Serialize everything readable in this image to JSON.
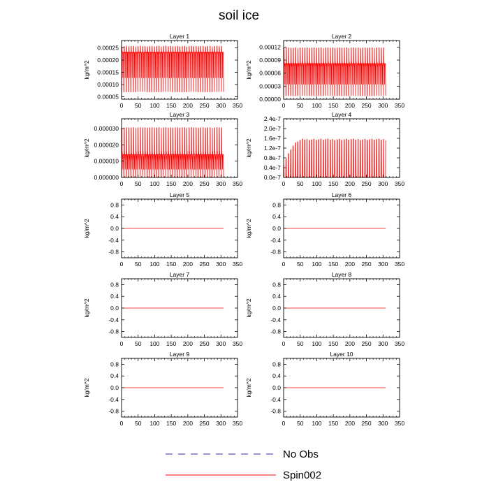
{
  "figure": {
    "title": "soil ice",
    "legend": [
      {
        "label": "No Obs",
        "color": "#2b2bb0",
        "style": "dashed"
      },
      {
        "label": "Spin002",
        "color": "#ff0000",
        "style": "solid"
      }
    ]
  },
  "chart_data": [
    {
      "type": "line",
      "title": "Layer 1",
      "ylabel": "kg/m^2",
      "xlim": [
        0,
        350
      ],
      "ylim": [
        4e-05,
        0.00028
      ],
      "xticks": [
        0,
        50,
        100,
        150,
        200,
        250,
        300,
        350
      ],
      "yticks": [
        5e-05,
        0.0001,
        0.00015,
        0.0002,
        0.00025
      ],
      "ytick_labels": [
        "0.00005",
        "0.00010",
        "0.00015",
        "0.00020",
        "0.00025"
      ],
      "series": [
        {
          "name": "Spin002",
          "color": "#ff0000",
          "x_range": [
            0,
            308
          ],
          "pattern": "oscillating",
          "cycles": 44,
          "low": 7e-05,
          "high": 0.000256,
          "mid": 0.000232
        }
      ]
    },
    {
      "type": "line",
      "title": "Layer 2",
      "ylabel": "kg/m^2",
      "xlim": [
        0,
        350
      ],
      "ylim": [
        0,
        0.000135
      ],
      "xticks": [
        0,
        50,
        100,
        150,
        200,
        250,
        300,
        350
      ],
      "yticks": [
        0,
        3e-05,
        6e-05,
        9e-05,
        0.00012
      ],
      "ytick_labels": [
        "0.00000",
        "0.00003",
        "0.00006",
        "0.00009",
        "0.00012"
      ],
      "series": [
        {
          "name": "Spin002",
          "color": "#ff0000",
          "x_range": [
            0,
            308
          ],
          "pattern": "oscillating",
          "cycles": 44,
          "low": 8e-06,
          "high": 0.000118,
          "mid": 8.2e-05
        }
      ]
    },
    {
      "type": "line",
      "title": "Layer 3",
      "ylabel": "kg/m^2",
      "xlim": [
        0,
        350
      ],
      "ylim": [
        0,
        3.6e-05
      ],
      "xticks": [
        0,
        50,
        100,
        150,
        200,
        250,
        300,
        350
      ],
      "yticks": [
        0,
        1e-05,
        2e-05,
        3e-05
      ],
      "ytick_labels": [
        "0.000000",
        "0.000010",
        "0.000020",
        "0.000030"
      ],
      "series": [
        {
          "name": "Spin002",
          "color": "#ff0000",
          "x_range": [
            0,
            308
          ],
          "pattern": "oscillating",
          "cycles": 44,
          "low": 0.0,
          "high": 3.05e-05,
          "mid": 1.4e-05
        }
      ]
    },
    {
      "type": "line",
      "title": "Layer 4",
      "ylabel": "kg/m^2",
      "xlim": [
        0,
        350
      ],
      "ylim": [
        0,
        2.4e-07
      ],
      "xticks": [
        0,
        50,
        100,
        150,
        200,
        250,
        300,
        350
      ],
      "yticks": [
        0,
        4e-08,
        8e-08,
        1.2e-07,
        1.6e-07,
        2e-07,
        2.4e-07
      ],
      "ytick_labels": [
        "0.0e-7",
        "0.4e-7",
        "0.8e-7",
        "1.2e-7",
        "1.6e-7",
        "2.0e-7",
        "2.4e-7"
      ],
      "series": [
        {
          "name": "Spin002",
          "color": "#ff0000",
          "x_range": [
            0,
            308
          ],
          "pattern": "rising-spikes",
          "cycles": 44,
          "low": 0.0,
          "high": 1.55e-07,
          "start": 5e-08
        }
      ]
    },
    {
      "type": "line",
      "title": "Layer 5",
      "ylabel": "kg/m^2",
      "xlim": [
        0,
        350
      ],
      "ylim": [
        -1,
        1
      ],
      "xticks": [
        0,
        50,
        100,
        150,
        200,
        250,
        300,
        350
      ],
      "yticks": [
        -0.8,
        -0.4,
        0,
        0.4,
        0.8
      ],
      "ytick_labels": [
        "-0.8",
        "-0.4",
        "0.0",
        "0.4",
        "0.8"
      ],
      "series": [
        {
          "name": "Spin002",
          "color": "#ff0000",
          "x_range": [
            0,
            308
          ],
          "pattern": "constant",
          "value": 0
        }
      ]
    },
    {
      "type": "line",
      "title": "Layer 6",
      "ylabel": "kg/m^2",
      "xlim": [
        0,
        350
      ],
      "ylim": [
        -1,
        1
      ],
      "xticks": [
        0,
        50,
        100,
        150,
        200,
        250,
        300,
        350
      ],
      "yticks": [
        -0.8,
        -0.4,
        0,
        0.4,
        0.8
      ],
      "ytick_labels": [
        "-0.8",
        "-0.4",
        "0.0",
        "0.4",
        "0.8"
      ],
      "series": [
        {
          "name": "Spin002",
          "color": "#ff0000",
          "x_range": [
            0,
            308
          ],
          "pattern": "constant",
          "value": 0
        }
      ]
    },
    {
      "type": "line",
      "title": "Layer 7",
      "ylabel": "kg/m^2",
      "xlim": [
        0,
        350
      ],
      "ylim": [
        -1,
        1
      ],
      "xticks": [
        0,
        50,
        100,
        150,
        200,
        250,
        300,
        350
      ],
      "yticks": [
        -0.8,
        -0.4,
        0,
        0.4,
        0.8
      ],
      "ytick_labels": [
        "-0.8",
        "-0.4",
        "0.0",
        "0.4",
        "0.8"
      ],
      "series": [
        {
          "name": "Spin002",
          "color": "#ff0000",
          "x_range": [
            0,
            308
          ],
          "pattern": "constant",
          "value": 0
        }
      ]
    },
    {
      "type": "line",
      "title": "Layer 8",
      "ylabel": "kg/m^2",
      "xlim": [
        0,
        350
      ],
      "ylim": [
        -1,
        1
      ],
      "xticks": [
        0,
        50,
        100,
        150,
        200,
        250,
        300,
        350
      ],
      "yticks": [
        -0.8,
        -0.4,
        0,
        0.4,
        0.8
      ],
      "ytick_labels": [
        "-0.8",
        "-0.4",
        "0.0",
        "0.4",
        "0.8"
      ],
      "series": [
        {
          "name": "Spin002",
          "color": "#ff0000",
          "x_range": [
            0,
            308
          ],
          "pattern": "constant",
          "value": 0
        }
      ]
    },
    {
      "type": "line",
      "title": "Layer 9",
      "ylabel": "kg/m^2",
      "xlim": [
        0,
        350
      ],
      "ylim": [
        -1,
        1
      ],
      "xticks": [
        0,
        50,
        100,
        150,
        200,
        250,
        300,
        350
      ],
      "yticks": [
        -0.8,
        -0.4,
        0,
        0.4,
        0.8
      ],
      "ytick_labels": [
        "-0.8",
        "-0.4",
        "0.0",
        "0.4",
        "0.8"
      ],
      "series": [
        {
          "name": "Spin002",
          "color": "#ff0000",
          "x_range": [
            0,
            308
          ],
          "pattern": "constant",
          "value": 0
        }
      ]
    },
    {
      "type": "line",
      "title": "Layer 10",
      "ylabel": "kg/m^2",
      "xlim": [
        0,
        350
      ],
      "ylim": [
        -1,
        1
      ],
      "xticks": [
        0,
        50,
        100,
        150,
        200,
        250,
        300,
        350
      ],
      "yticks": [
        -0.8,
        -0.4,
        0,
        0.4,
        0.8
      ],
      "ytick_labels": [
        "-0.8",
        "-0.4",
        "0.0",
        "0.4",
        "0.8"
      ],
      "series": [
        {
          "name": "Spin002",
          "color": "#ff0000",
          "x_range": [
            0,
            308
          ],
          "pattern": "constant",
          "value": 0
        }
      ]
    }
  ]
}
